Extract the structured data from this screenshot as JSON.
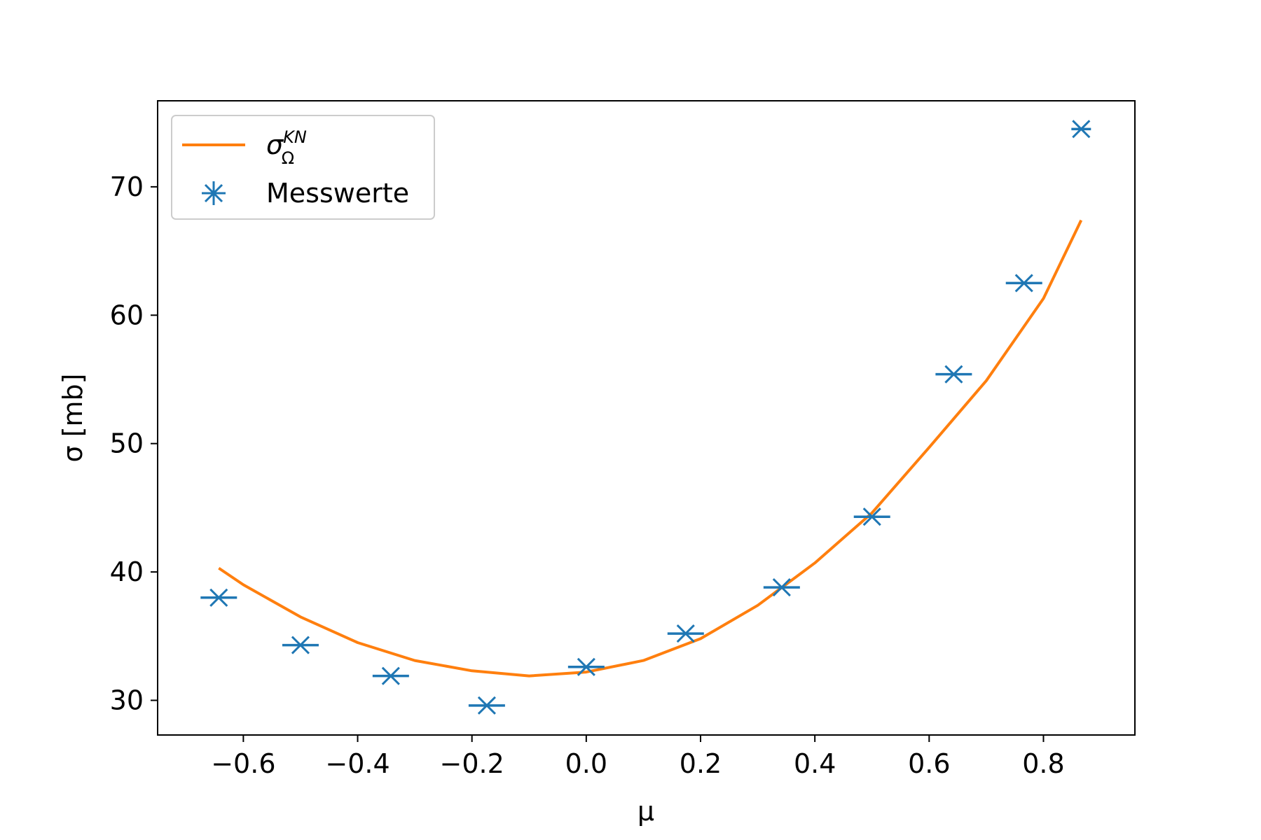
{
  "chart_data": {
    "type": "scatter",
    "xlabel": "μ",
    "ylabel": "σ [mb]",
    "xlim": [
      -0.75,
      0.96
    ],
    "ylim": [
      27.3,
      76.7
    ],
    "xticks": [
      -0.6,
      -0.4,
      -0.2,
      0.0,
      0.2,
      0.4,
      0.6,
      0.8
    ],
    "xtick_labels": [
      "−0.6",
      "−0.4",
      "−0.2",
      "0.0",
      "0.2",
      "0.4",
      "0.6",
      "0.8"
    ],
    "yticks": [
      30,
      40,
      50,
      60,
      70
    ],
    "ytick_labels": [
      "30",
      "40",
      "50",
      "60",
      "70"
    ],
    "grid": false,
    "legend_position": "top-left",
    "series": [
      {
        "name": "σ_Ω^KN",
        "type": "line",
        "color": "#ff7f0e",
        "x": [
          -0.643,
          -0.6,
          -0.5,
          -0.4,
          -0.3,
          -0.2,
          -0.1,
          0.0,
          0.1,
          0.2,
          0.3,
          0.4,
          0.5,
          0.6,
          0.7,
          0.8,
          0.866
        ],
        "y": [
          40.3,
          39.0,
          36.5,
          34.5,
          33.1,
          32.3,
          31.9,
          32.2,
          33.1,
          34.8,
          37.4,
          40.7,
          44.6,
          49.7,
          54.9,
          61.3,
          67.4
        ]
      },
      {
        "name": "Messwerte",
        "type": "scatter",
        "marker": "x-with-horizontal-errorbar",
        "color": "#1f77b4",
        "x": [
          -0.643,
          -0.5,
          -0.342,
          -0.174,
          0.0,
          0.174,
          0.342,
          0.5,
          0.643,
          0.766,
          0.866
        ],
        "y": [
          38.0,
          34.3,
          31.9,
          29.6,
          32.6,
          35.2,
          38.8,
          44.3,
          55.4,
          62.5,
          74.5
        ]
      }
    ]
  }
}
